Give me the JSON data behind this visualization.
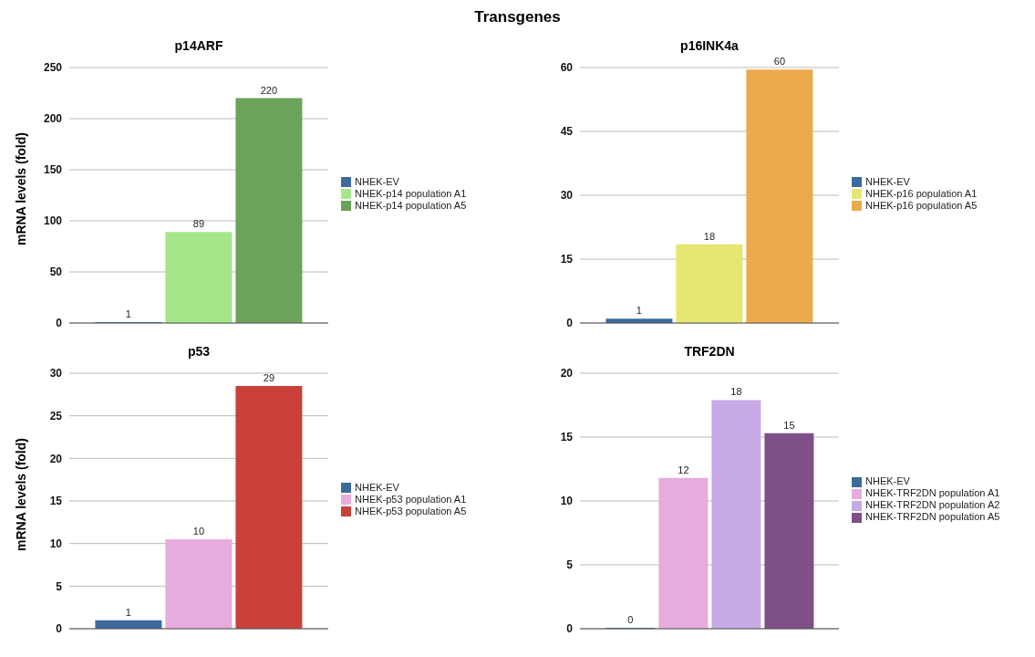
{
  "chart_data": [
    {
      "type": "bar",
      "title": "p14ARF",
      "ylabel": "mRNA levels (fold)",
      "annotations": [
        "Transgenes"
      ],
      "categories": [
        null
      ],
      "ylim": [
        0,
        250
      ],
      "yticks": [
        0,
        50,
        100,
        150,
        200,
        250
      ],
      "grid": "y",
      "legend": "right",
      "series": [
        {
          "name": "NHEK-EV",
          "color": "#3d6a9b",
          "values": [
            1
          ],
          "value_labels": [
            "1"
          ]
        },
        {
          "name": "NHEK-p14 population A1",
          "color": "#a6e68b",
          "values": [
            89
          ],
          "value_labels": [
            "89"
          ]
        },
        {
          "name": "NHEK-p14 population A5",
          "color": "#6ba35a",
          "values": [
            220
          ],
          "value_labels": [
            "220"
          ]
        }
      ]
    },
    {
      "type": "bar",
      "title": "p16INK4a",
      "categories": [
        null
      ],
      "ylim": [
        0,
        60
      ],
      "yticks": [
        0,
        15,
        30,
        45,
        60
      ],
      "grid": "y",
      "legend": "right",
      "series": [
        {
          "name": "NHEK-EV",
          "color": "#3d6a9b",
          "values": [
            1
          ],
          "value_labels": [
            "1"
          ]
        },
        {
          "name": "NHEK-p16 population A1",
          "color": "#e6e672",
          "values": [
            18.5
          ],
          "value_labels": [
            "18"
          ]
        },
        {
          "name": "NHEK-p16 population A5",
          "color": "#ecaa4c",
          "values": [
            59.5
          ],
          "value_labels": [
            "60"
          ]
        }
      ]
    },
    {
      "type": "bar",
      "title": "p53",
      "ylabel": "mRNA levels (fold)",
      "categories": [
        null
      ],
      "ylim": [
        0,
        30
      ],
      "yticks": [
        0,
        5,
        10,
        15,
        20,
        25,
        30
      ],
      "grid": "y",
      "legend": "right",
      "series": [
        {
          "name": "NHEK-EV",
          "color": "#3d6a9b",
          "values": [
            1
          ],
          "value_labels": [
            "1"
          ]
        },
        {
          "name": "NHEK-p53 population A1",
          "color": "#e6acdd",
          "values": [
            10.5
          ],
          "value_labels": [
            "10"
          ]
        },
        {
          "name": "NHEK-p53 population A5",
          "color": "#c9403a",
          "values": [
            28.5
          ],
          "value_labels": [
            "29"
          ]
        }
      ]
    },
    {
      "type": "bar",
      "title": "TRF2DN",
      "categories": [
        null
      ],
      "ylim": [
        0,
        20
      ],
      "yticks": [
        0,
        5,
        10,
        15,
        20
      ],
      "grid": "y",
      "legend": "right",
      "series": [
        {
          "name": "NHEK-EV",
          "color": "#3d6a9b",
          "values": [
            0
          ],
          "value_labels": [
            "0"
          ]
        },
        {
          "name": "NHEK-TRF2DN population A1",
          "color": "#e6acdd",
          "values": [
            11.8
          ],
          "value_labels": [
            "12"
          ]
        },
        {
          "name": "NHEK-TRF2DN population A2",
          "color": "#c7aae6",
          "values": [
            17.9
          ],
          "value_labels": [
            "18"
          ]
        },
        {
          "name": "NHEK-TRF2DN population A5",
          "color": "#7f4f87",
          "values": [
            15.3
          ],
          "value_labels": [
            "15"
          ]
        }
      ]
    }
  ]
}
